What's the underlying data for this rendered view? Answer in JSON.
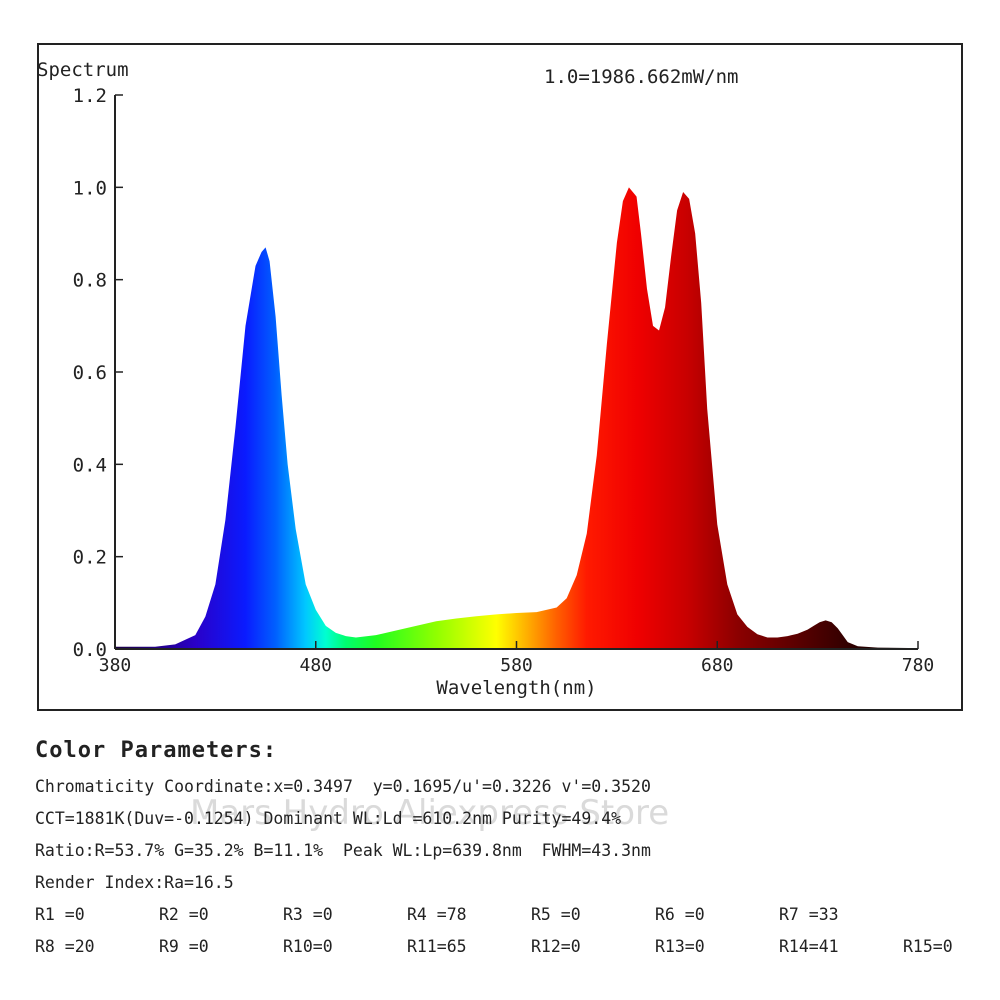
{
  "chart_data": {
    "type": "area",
    "y_title": "Spectrum",
    "scale_note": "1.0=1986.662mW/nm",
    "xlabel": "Wavelength(nm)",
    "xlim": [
      380,
      780
    ],
    "ylim": [
      0,
      1.2
    ],
    "x_ticks": [
      380,
      480,
      580,
      680,
      780
    ],
    "y_ticks": [
      "0.0",
      "0.2",
      "0.4",
      "0.6",
      "0.8",
      "1.0",
      "1.2"
    ],
    "series": [
      {
        "x": [
          380,
          400,
          410,
          420,
          425,
          430,
          435,
          440,
          445,
          450,
          453,
          455,
          457,
          460,
          463,
          466,
          470,
          475,
          480,
          485,
          490,
          495,
          500,
          510,
          520,
          530,
          540,
          550,
          560,
          570,
          580,
          590,
          600,
          605,
          610,
          615,
          620,
          625,
          630,
          633,
          636,
          639.8,
          642,
          645,
          648,
          651,
          654,
          657,
          660,
          663,
          666,
          669,
          672,
          675,
          680,
          685,
          690,
          695,
          700,
          705,
          710,
          715,
          720,
          725,
          728,
          731,
          734,
          737,
          740,
          745,
          750,
          760,
          780
        ],
        "y": [
          0.005,
          0.005,
          0.01,
          0.03,
          0.07,
          0.14,
          0.28,
          0.48,
          0.7,
          0.83,
          0.86,
          0.87,
          0.84,
          0.72,
          0.55,
          0.4,
          0.26,
          0.14,
          0.085,
          0.05,
          0.035,
          0.028,
          0.025,
          0.03,
          0.04,
          0.05,
          0.06,
          0.066,
          0.071,
          0.075,
          0.078,
          0.08,
          0.09,
          0.11,
          0.16,
          0.25,
          0.42,
          0.66,
          0.88,
          0.97,
          1.0,
          0.98,
          0.9,
          0.78,
          0.7,
          0.69,
          0.74,
          0.85,
          0.95,
          0.99,
          0.975,
          0.9,
          0.75,
          0.52,
          0.27,
          0.14,
          0.075,
          0.048,
          0.032,
          0.025,
          0.025,
          0.028,
          0.033,
          0.042,
          0.05,
          0.058,
          0.062,
          0.058,
          0.045,
          0.015,
          0.006,
          0.003,
          0.002
        ]
      }
    ]
  },
  "params": {
    "title": "Color Parameters:",
    "line1": "Chromaticity Coordinate:x=0.3497  y=0.1695/u'=0.3226 v'=0.3520",
    "line2": "CCT=1881K(Duv=-0.1254) Dominant WL:Ld =610.2nm Purity=49.4%",
    "line3": "Ratio:R=53.7% G=35.2% B=11.1%  Peak WL:Lp=639.8nm  FWHM=43.3nm",
    "line4": "Render Index:Ra=16.5",
    "r_row1": [
      "R1 =0",
      "R2 =0",
      "R3 =0",
      "R4 =78",
      "R5 =0",
      "R6 =0",
      "R7 =33"
    ],
    "r_row2": [
      "R8 =20",
      "R9 =0",
      "R10=0",
      "R11=65",
      "R12=0",
      "R13=0",
      "R14=41",
      "R15=0"
    ]
  },
  "watermark": "Mars Hydro Aliexpress Store"
}
